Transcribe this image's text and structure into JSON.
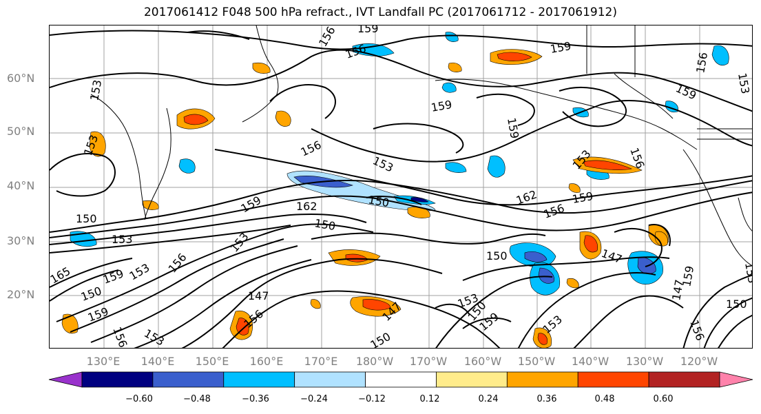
{
  "title": "2017061412 F048 500 hPa refract., IVT Landfall PC (2017061712 - 2017061912)",
  "map": {
    "lat_labels": [
      "60°N",
      "50°N",
      "40°N",
      "30°N",
      "20°N"
    ],
    "lon_labels": [
      "130°E",
      "140°E",
      "150°E",
      "160°E",
      "170°E",
      "180°W",
      "170°W",
      "160°W",
      "150°W",
      "140°W",
      "130°W",
      "120°W"
    ],
    "contour_labels": [
      "159",
      "156",
      "156",
      "159",
      "159",
      "156",
      "153",
      "159",
      "159",
      "156",
      "153",
      "153",
      "156",
      "153",
      "150",
      "162",
      "150",
      "159",
      "150",
      "162",
      "156",
      "159",
      "153",
      "156",
      "150",
      "153",
      "147",
      "150",
      "147",
      "150",
      "153",
      "159",
      "153",
      "156",
      "153",
      "159",
      "156",
      "150",
      "153",
      "153",
      "147",
      "150",
      "147",
      "159",
      "156",
      "165",
      "159",
      "153"
    ],
    "colors": {
      "neg_060": "#000080",
      "neg_048": "#3a5fcd",
      "neg_036": "#00bfff",
      "neg_024": "#b0e2ff",
      "pos_012": "#ffec8b",
      "pos_024": "#ffa500",
      "pos_036": "#ff4500",
      "pos_048": "#b22222",
      "over_max": "#ff82ab",
      "under_min": "#9932cc",
      "grid": "#a0a0a0",
      "coast": "#000000"
    }
  },
  "colorbar": {
    "ticks": [
      "−0.60",
      "−0.48",
      "−0.36",
      "−0.24",
      "−0.12",
      "0.12",
      "0.24",
      "0.36",
      "0.48",
      "0.60"
    ],
    "bins": [
      "#9932cc",
      "#000080",
      "#3a5fcd",
      "#00bfff",
      "#b0e2ff",
      "#ffffff",
      "#ffec8b",
      "#ffa500",
      "#ff4500",
      "#b22222",
      "#ff82ab"
    ]
  }
}
